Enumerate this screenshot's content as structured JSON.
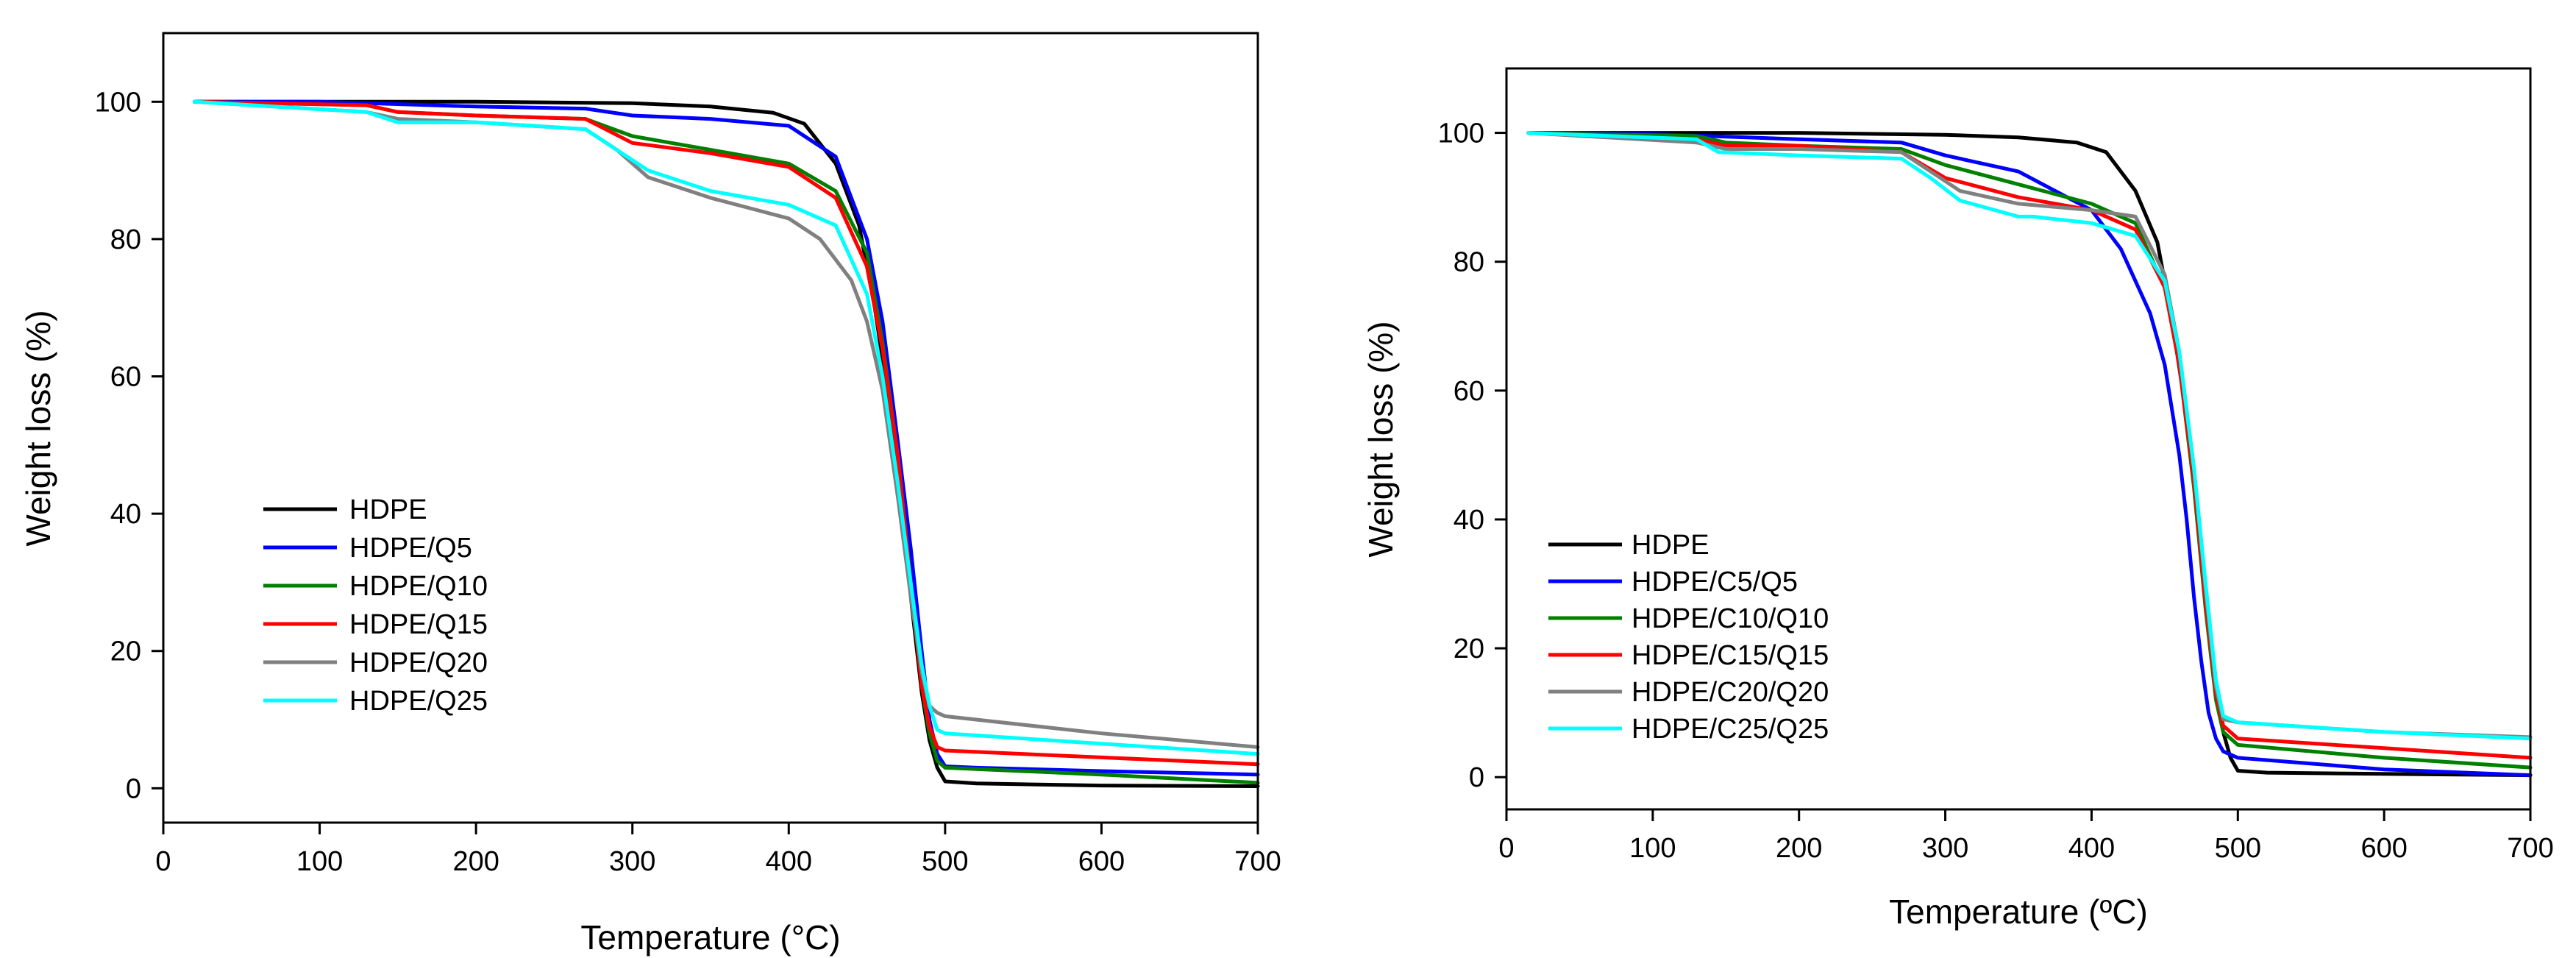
{
  "chart_data": [
    {
      "type": "line",
      "title": "",
      "xlabel": "Temperature (°C)",
      "ylabel": "Weight loss (%)",
      "xlim": [
        0,
        700
      ],
      "ylim": [
        -5,
        110
      ],
      "xticks": [
        0,
        100,
        200,
        300,
        400,
        500,
        600,
        700
      ],
      "yticks": [
        0,
        20,
        40,
        60,
        80,
        100
      ],
      "grid": false,
      "legend_position": "lower-left",
      "series": [
        {
          "name": "HDPE",
          "color": "#000000",
          "x": [
            20,
            100,
            200,
            300,
            350,
            390,
            410,
            430,
            445,
            455,
            465,
            472,
            478,
            485,
            490,
            495,
            500,
            520,
            600,
            700
          ],
          "y": [
            100,
            100,
            100,
            99.8,
            99.3,
            98.4,
            96.8,
            91,
            82,
            70,
            55,
            42,
            28,
            14,
            7,
            3,
            1,
            0.7,
            0.4,
            0.3
          ]
        },
        {
          "name": "HDPE/Q5",
          "color": "#0000ff",
          "x": [
            20,
            100,
            200,
            270,
            300,
            350,
            400,
            430,
            450,
            460,
            470,
            478,
            485,
            490,
            495,
            500,
            520,
            600,
            700
          ],
          "y": [
            100,
            100,
            99.3,
            99,
            98,
            97.5,
            96.5,
            92,
            80,
            68,
            50,
            35,
            20,
            10,
            5,
            3.2,
            3,
            2.5,
            2
          ]
        },
        {
          "name": "HDPE/Q10",
          "color": "#008000",
          "x": [
            20,
            130,
            150,
            200,
            270,
            300,
            350,
            400,
            430,
            450,
            460,
            470,
            478,
            485,
            490,
            495,
            500,
            600,
            700
          ],
          "y": [
            100,
            99.5,
            98.5,
            98,
            97.5,
            95,
            93,
            91,
            87,
            78,
            65,
            48,
            30,
            15,
            8,
            4,
            3,
            2,
            0.8
          ]
        },
        {
          "name": "HDPE/Q15",
          "color": "#ff0000",
          "x": [
            20,
            130,
            150,
            200,
            270,
            300,
            350,
            400,
            430,
            450,
            460,
            470,
            478,
            485,
            490,
            495,
            500,
            600,
            700
          ],
          "y": [
            100,
            99.5,
            98.5,
            98,
            97.5,
            94,
            92.5,
            90.5,
            86,
            76,
            64,
            48,
            30,
            15,
            9,
            6,
            5.5,
            4.5,
            3.5
          ]
        },
        {
          "name": "HDPE/Q20",
          "color": "#808080",
          "x": [
            20,
            130,
            150,
            200,
            270,
            290,
            310,
            350,
            400,
            420,
            440,
            450,
            460,
            470,
            478,
            485,
            490,
            495,
            500,
            600,
            700
          ],
          "y": [
            100,
            98.5,
            97.5,
            97,
            96,
            93,
            89,
            86,
            83,
            80,
            74,
            68,
            58,
            42,
            28,
            17,
            12,
            11,
            10.5,
            8,
            6
          ]
        },
        {
          "name": "HDPE/Q25",
          "color": "#00ffff",
          "x": [
            20,
            130,
            150,
            200,
            270,
            290,
            310,
            350,
            400,
            430,
            450,
            460,
            470,
            478,
            485,
            490,
            495,
            500,
            600,
            700
          ],
          "y": [
            100,
            98.5,
            97,
            97,
            96,
            93,
            90,
            87,
            85,
            82,
            72,
            60,
            44,
            30,
            18,
            12,
            8.5,
            8,
            6.5,
            5
          ]
        }
      ]
    },
    {
      "type": "line",
      "title": "",
      "xlabel": "Temperature (ºC)",
      "ylabel": "Weight loss (%)",
      "xlim": [
        0,
        700
      ],
      "ylim": [
        -5,
        110
      ],
      "xticks": [
        0,
        100,
        200,
        300,
        400,
        500,
        600,
        700
      ],
      "yticks": [
        0,
        20,
        40,
        60,
        80,
        100
      ],
      "grid": false,
      "legend_position": "lower-left",
      "series": [
        {
          "name": "HDPE",
          "color": "#000000",
          "x": [
            15,
            100,
            200,
            300,
            350,
            390,
            410,
            430,
            445,
            455,
            465,
            472,
            478,
            485,
            490,
            495,
            500,
            520,
            600,
            700
          ],
          "y": [
            100,
            100,
            100,
            99.7,
            99.3,
            98.5,
            97,
            91,
            83,
            71,
            56,
            43,
            28,
            14,
            7,
            3,
            1,
            0.7,
            0.5,
            0.3
          ]
        },
        {
          "name": "HDPE/C5/Q5",
          "color": "#0000ff",
          "x": [
            15,
            100,
            200,
            270,
            300,
            350,
            400,
            420,
            440,
            450,
            460,
            465,
            470,
            475,
            480,
            485,
            490,
            500,
            600,
            700
          ],
          "y": [
            100,
            99.8,
            99,
            98.5,
            96.5,
            94,
            88,
            82,
            72,
            64,
            50,
            40,
            28,
            18,
            10,
            6,
            4,
            3,
            1.2,
            0.3
          ]
        },
        {
          "name": "HDPE/C10/Q10",
          "color": "#008000",
          "x": [
            15,
            130,
            150,
            200,
            270,
            300,
            350,
            400,
            430,
            450,
            460,
            470,
            478,
            485,
            490,
            500,
            600,
            700
          ],
          "y": [
            100,
            99.5,
            98.5,
            98,
            97.5,
            95,
            92,
            89,
            86,
            76,
            64,
            45,
            26,
            12,
            7,
            5,
            3,
            1.5
          ]
        },
        {
          "name": "HDPE/C15/Q15",
          "color": "#ff0000",
          "x": [
            15,
            130,
            150,
            200,
            270,
            300,
            350,
            400,
            430,
            450,
            460,
            470,
            478,
            485,
            490,
            500,
            600,
            700
          ],
          "y": [
            100,
            99,
            98,
            98,
            97,
            93,
            90,
            88,
            85,
            76,
            64,
            46,
            27,
            13,
            8,
            6,
            4.5,
            3
          ]
        },
        {
          "name": "HDPE/C20/Q20",
          "color": "#808080",
          "x": [
            15,
            130,
            150,
            200,
            270,
            290,
            310,
            350,
            400,
            430,
            450,
            460,
            470,
            478,
            485,
            490,
            500,
            600,
            700
          ],
          "y": [
            100,
            98.5,
            97.5,
            97.5,
            97,
            94,
            91,
            89,
            88,
            87,
            78,
            66,
            48,
            29,
            14,
            9,
            8.5,
            7,
            6.2
          ]
        },
        {
          "name": "HDPE/C25/Q25",
          "color": "#00ffff",
          "x": [
            15,
            130,
            145,
            200,
            270,
            290,
            310,
            350,
            360,
            400,
            430,
            450,
            460,
            470,
            478,
            485,
            490,
            500,
            600,
            700
          ],
          "y": [
            100,
            99,
            97,
            96.5,
            96,
            93,
            89.5,
            87,
            87,
            86,
            84,
            77,
            66,
            48,
            30,
            15,
            9.5,
            8.5,
            7,
            6
          ]
        }
      ]
    }
  ]
}
